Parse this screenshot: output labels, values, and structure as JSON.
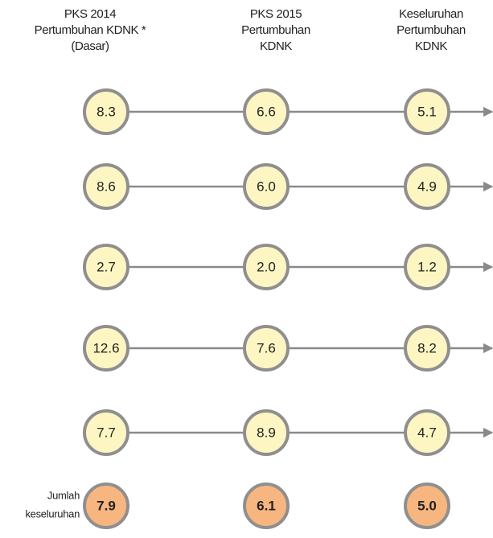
{
  "columns": [
    {
      "lines": [
        "PKS 2014",
        "Pertumbuhan KDNK *",
        "(Dasar)"
      ]
    },
    {
      "lines": [
        "PKS 2015",
        "Pertumbuhan",
        "KDNK"
      ]
    },
    {
      "lines": [
        "Keseluruhan",
        "Pertumbuhan",
        "KDNK"
      ]
    }
  ],
  "rows": [
    [
      "8.3",
      "6.6",
      "5.1"
    ],
    [
      "8.6",
      "6.0",
      "4.9"
    ],
    [
      "2.7",
      "2.0",
      "1.2"
    ],
    [
      "12.6",
      "7.6",
      "8.2"
    ],
    [
      "7.7",
      "8.9",
      "4.7"
    ]
  ],
  "total": {
    "label_lines": [
      "Jumlah",
      "keseluruhan"
    ],
    "values": [
      "7.9",
      "6.1",
      "5.0"
    ]
  }
}
